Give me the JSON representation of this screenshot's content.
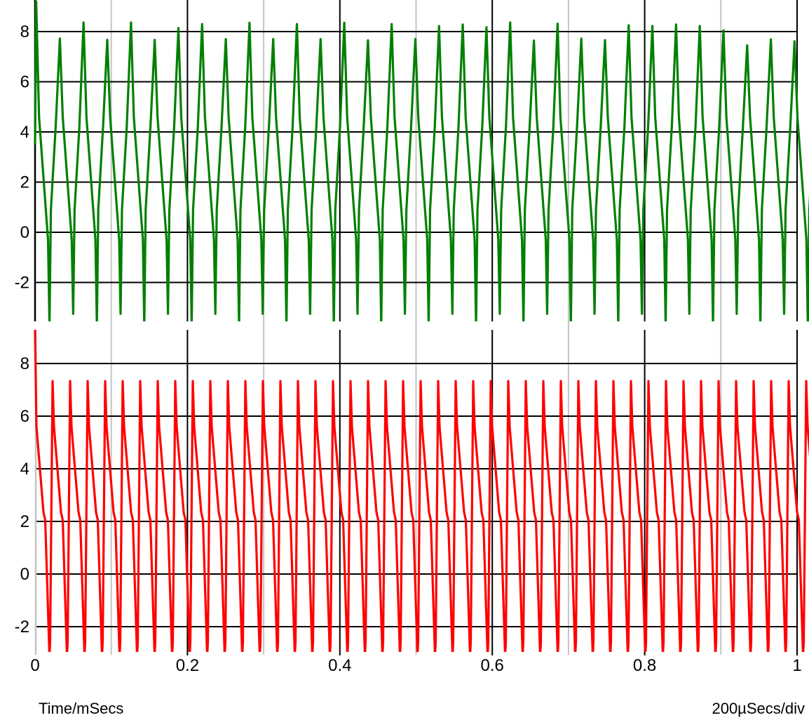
{
  "footer": {
    "xlabel": "Time/mSecs",
    "scale": "200µSecs/div"
  },
  "colors": {
    "trace_top": "#008000",
    "trace_bottom": "#ff0000",
    "grid_major": "#000000",
    "grid_minor": "#c4c4c4",
    "background": "#ffffff",
    "text": "#000000"
  },
  "chart_data": {
    "type": "line",
    "title": "",
    "xlabel": "Time/mSecs",
    "x_unit": "mSecs",
    "time_per_div": "200µSecs/div",
    "x_range": [
      0,
      1
    ],
    "x_ticks": [
      {
        "label": "0",
        "value": 0
      },
      {
        "label": "0.2",
        "value": 0.2
      },
      {
        "label": "0.4",
        "value": 0.4
      },
      {
        "label": "0.6",
        "value": 0.6
      },
      {
        "label": "0.8",
        "value": 0.8
      },
      {
        "label": "1",
        "value": 1
      }
    ],
    "x_minor_gridlines": [
      0.1,
      0.3,
      0.5,
      0.7,
      0.9
    ],
    "grid": "on",
    "legend": "none",
    "plots": [
      {
        "position": "top",
        "ylim": [
          -3.55,
          9.26
        ],
        "y_ticks": [
          {
            "label": "8",
            "value": 8
          },
          {
            "label": "6",
            "value": 6
          },
          {
            "label": "4",
            "value": 4
          },
          {
            "label": "2",
            "value": 2
          },
          {
            "label": "0",
            "value": 0
          },
          {
            "label": "-2",
            "value": -2
          }
        ],
        "series": [
          {
            "name": "green-waveform",
            "color": "#008000",
            "stroke_width": 3.2,
            "period_ms": 0.0311,
            "first_apex_ms": 0.0015,
            "start_point": [
              0,
              3.5
            ],
            "cycle_shape": [
              [
                0,
                "P"
              ],
              [
                0.12,
                4.6
              ],
              [
                0.5,
                -0.3
              ],
              [
                0.56,
                "V"
              ],
              [
                0.62,
                0.9
              ],
              [
                0.82,
                4.2
              ]
            ],
            "peaks": [
              9.2,
              7.72,
              8.36,
              7.67,
              8.36,
              7.67,
              8.14,
              8.3,
              7.7,
              8.35,
              7.7,
              8.3,
              7.7,
              8.35,
              7.65,
              8.3,
              7.7,
              8.22,
              8.28,
              8.17,
              8.36,
              7.64,
              8.31,
              7.72,
              7.66,
              8.25,
              8.22,
              8.28,
              8.22,
              8.05,
              7.45,
              7.69,
              7.61,
              7.7
            ],
            "valleys": [
              -3.7,
              -3.25
            ]
          }
        ]
      },
      {
        "position": "bottom",
        "ylim": [
          -2.96,
          9.28
        ],
        "y_ticks": [
          {
            "label": "8",
            "value": 8
          },
          {
            "label": "6",
            "value": 6
          },
          {
            "label": "4",
            "value": 4
          },
          {
            "label": "2",
            "value": 2
          },
          {
            "label": "0",
            "value": 0
          },
          {
            "label": "-2",
            "value": -2
          }
        ],
        "series": [
          {
            "name": "red-waveform",
            "color": "#ff0000",
            "stroke_width": 3.2,
            "period_ms": 0.023,
            "first_apex_ms": 0,
            "cycle_shape": [
              [
                0,
                "P"
              ],
              [
                0.08,
                5.6
              ],
              [
                0.48,
                2.35
              ],
              [
                0.58,
                2.05
              ],
              [
                0.82,
                "V"
              ],
              [
                0.86,
                -2.6
              ]
            ],
            "peaks": [
              9.3,
              7.33,
              7.33,
              7.33,
              7.33,
              7.33,
              7.33,
              7.33,
              7.33,
              7.33,
              7.33,
              7.33,
              7.33,
              7.33,
              7.33,
              7.33,
              7.33,
              7.33,
              7.33,
              7.33,
              7.33,
              7.33,
              7.33,
              7.33,
              7.33,
              7.33,
              7.33,
              7.33,
              7.33,
              7.33,
              7.33,
              7.33,
              7.33,
              7.33,
              7.33,
              7.33,
              7.33,
              7.33,
              7.33,
              7.33,
              7.33,
              7.33,
              7.33,
              7.33,
              7.33
            ],
            "valleys": [
              -3.1
            ]
          }
        ]
      }
    ]
  }
}
